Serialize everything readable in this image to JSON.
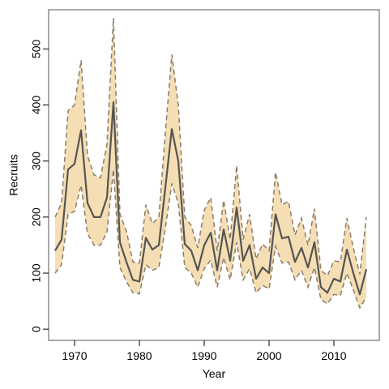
{
  "chart_data": {
    "type": "area",
    "title": "",
    "xlabel": "Year",
    "ylabel": "Recruits",
    "xlim": [
      1966,
      2017
    ],
    "ylim": [
      -20,
      570
    ],
    "x_ticks": [
      1970,
      1980,
      1990,
      2000,
      2010
    ],
    "y_ticks": [
      0,
      100,
      200,
      300,
      400,
      500
    ],
    "grid": false,
    "legend": "none",
    "colors": {
      "band": "#f5deb3",
      "median": "#555555",
      "bounds": "#8b7d6b",
      "frame": "#555555"
    },
    "x": [
      1967,
      1968,
      1969,
      1970,
      1971,
      1972,
      1973,
      1974,
      1975,
      1976,
      1977,
      1978,
      1979,
      1980,
      1981,
      1982,
      1983,
      1984,
      1985,
      1986,
      1987,
      1988,
      1989,
      1990,
      1991,
      1992,
      1993,
      1994,
      1995,
      1996,
      1997,
      1998,
      1999,
      2000,
      2001,
      2002,
      2003,
      2004,
      2005,
      2006,
      2007,
      2008,
      2009,
      2010,
      2011,
      2012,
      2013,
      2014,
      2015
    ],
    "series": [
      {
        "role": "median",
        "values": [
          140,
          160,
          285,
          295,
          355,
          225,
          200,
          200,
          235,
          405,
          155,
          120,
          88,
          85,
          163,
          142,
          150,
          252,
          357,
          300,
          152,
          140,
          105,
          150,
          172,
          105,
          178,
          122,
          217,
          122,
          150,
          90,
          110,
          100,
          205,
          162,
          165,
          120,
          145,
          110,
          155,
          75,
          65,
          90,
          85,
          142,
          100,
          62,
          107
        ]
      },
      {
        "role": "upper",
        "values": [
          200,
          225,
          390,
          400,
          480,
          310,
          275,
          270,
          330,
          555,
          205,
          175,
          120,
          118,
          222,
          188,
          200,
          350,
          490,
          400,
          200,
          185,
          145,
          212,
          235,
          140,
          230,
          160,
          292,
          160,
          205,
          125,
          152,
          140,
          280,
          222,
          228,
          168,
          198,
          150,
          215,
          105,
          95,
          122,
          120,
          198,
          145,
          98,
          200
        ]
      },
      {
        "role": "lower",
        "values": [
          100,
          115,
          205,
          210,
          257,
          170,
          150,
          150,
          173,
          285,
          110,
          85,
          65,
          63,
          115,
          105,
          110,
          180,
          260,
          225,
          110,
          100,
          75,
          108,
          123,
          75,
          128,
          88,
          155,
          88,
          108,
          65,
          78,
          72,
          148,
          118,
          120,
          88,
          105,
          75,
          110,
          53,
          45,
          62,
          60,
          100,
          70,
          38,
          57
        ]
      }
    ]
  }
}
